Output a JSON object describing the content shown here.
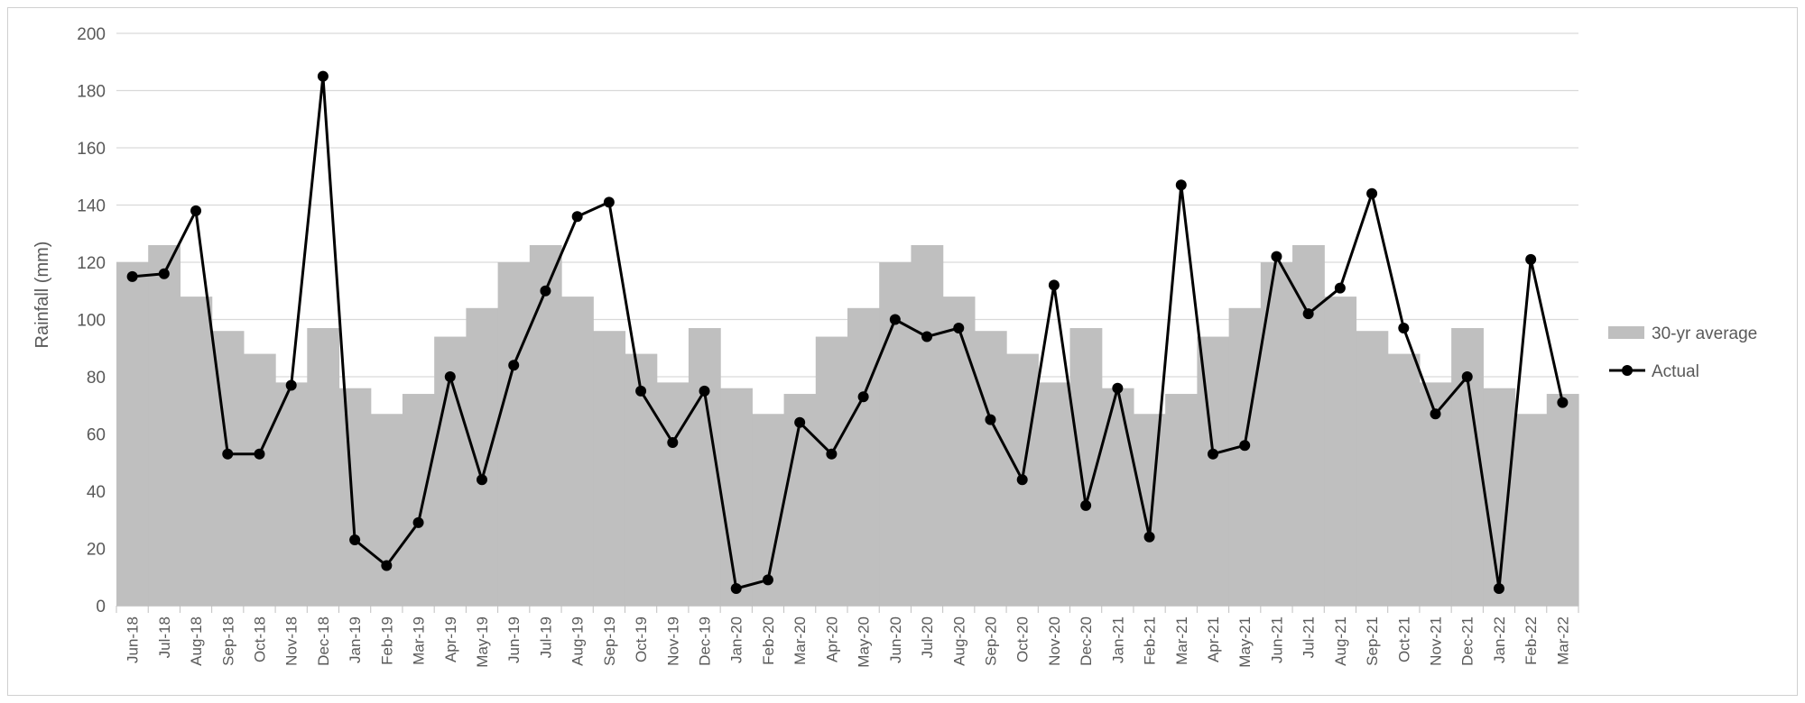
{
  "chart_data": {
    "type": "bar+line",
    "title": "",
    "xlabel": "",
    "ylabel": "Rainfall (mm)",
    "ylim": [
      0,
      200
    ],
    "yticks": [
      "0",
      "20",
      "40",
      "60",
      "80",
      "100",
      "120",
      "140",
      "160",
      "180",
      "200"
    ],
    "grid": true,
    "legend_position": "right",
    "colors": {
      "average": "#bfbfbf",
      "actual": "#000000",
      "grid": "#d9d9d9",
      "text": "#595959"
    },
    "categories": [
      "Jun-18",
      "Jul-18",
      "Aug-18",
      "Sep-18",
      "Oct-18",
      "Nov-18",
      "Dec-18",
      "Jan-19",
      "Feb-19",
      "Mar-19",
      "Apr-19",
      "May-19",
      "Jun-19",
      "Jul-19",
      "Aug-19",
      "Sep-19",
      "Oct-19",
      "Nov-19",
      "Dec-19",
      "Jan-20",
      "Feb-20",
      "Mar-20",
      "Apr-20",
      "May-20",
      "Jun-20",
      "Jul-20",
      "Aug-20",
      "Sep-20",
      "Oct-20",
      "Nov-20",
      "Dec-20",
      "Jan-21",
      "Feb-21",
      "Mar-21",
      "Apr-21",
      "May-21",
      "Jun-21",
      "Jul-21",
      "Aug-21",
      "Sep-21",
      "Oct-21",
      "Nov-21",
      "Dec-21",
      "Jan-22",
      "Feb-22",
      "Mar-22"
    ],
    "series": [
      {
        "name": "30-yr average",
        "kind": "bar",
        "values": [
          120,
          126,
          108,
          96,
          88,
          78,
          97,
          76,
          67,
          74,
          94,
          104,
          120,
          126,
          108,
          96,
          88,
          78,
          97,
          76,
          67,
          74,
          94,
          104,
          120,
          126,
          108,
          96,
          88,
          78,
          97,
          76,
          67,
          74,
          94,
          104,
          120,
          126,
          108,
          96,
          88,
          78,
          97,
          76,
          67,
          74
        ]
      },
      {
        "name": "Actual",
        "kind": "line",
        "values": [
          115,
          116,
          138,
          53,
          53,
          77,
          185,
          23,
          14,
          29,
          80,
          44,
          84,
          110,
          136,
          141,
          75,
          57,
          75,
          6,
          9,
          64,
          53,
          73,
          100,
          94,
          97,
          65,
          44,
          112,
          35,
          76,
          24,
          147,
          53,
          56,
          122,
          102,
          111,
          144,
          97,
          67,
          80,
          6,
          121,
          71
        ]
      }
    ]
  }
}
